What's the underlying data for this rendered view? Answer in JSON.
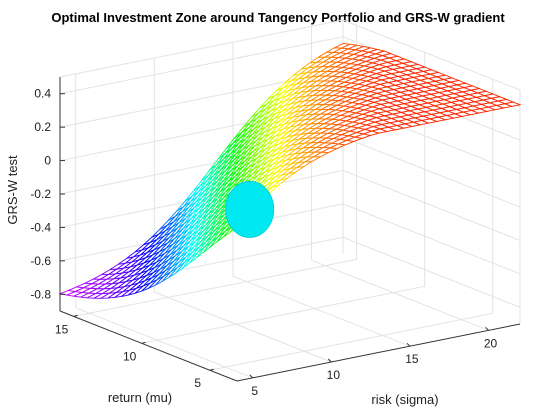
{
  "chart_data": {
    "type": "surface3d",
    "title": "Optimal Investment Zone around Tangency Portfolio and GRS-W gradient",
    "xlabel": "risk (sigma)",
    "ylabel": "return (mu)",
    "zlabel": "GRS-W test",
    "xlim": [
      4,
      22
    ],
    "ylim": [
      3,
      16
    ],
    "zlim": [
      -0.9,
      0.5
    ],
    "xticks": [
      "5",
      "10",
      "15",
      "20"
    ],
    "yticks": [
      "5",
      "10",
      "15"
    ],
    "zticks": [
      "-0.8",
      "-0.6",
      "-0.4",
      "-0.2",
      "0",
      "0.2",
      "0.4"
    ],
    "grid": true,
    "colormap": "hsv",
    "surface": {
      "description": "GRS-W value as a function of risk and return: low (-0.85) at high return / low risk, rising to about 0.45 at high risk",
      "x_range": [
        4,
        22
      ],
      "y_range": [
        3,
        16
      ],
      "z_min": -0.85,
      "z_max": 0.45
    },
    "tangency_marker": {
      "shape": "sphere",
      "color": "#00e8f0",
      "sigma": 10,
      "mu": 9,
      "grs": -0.18
    }
  }
}
